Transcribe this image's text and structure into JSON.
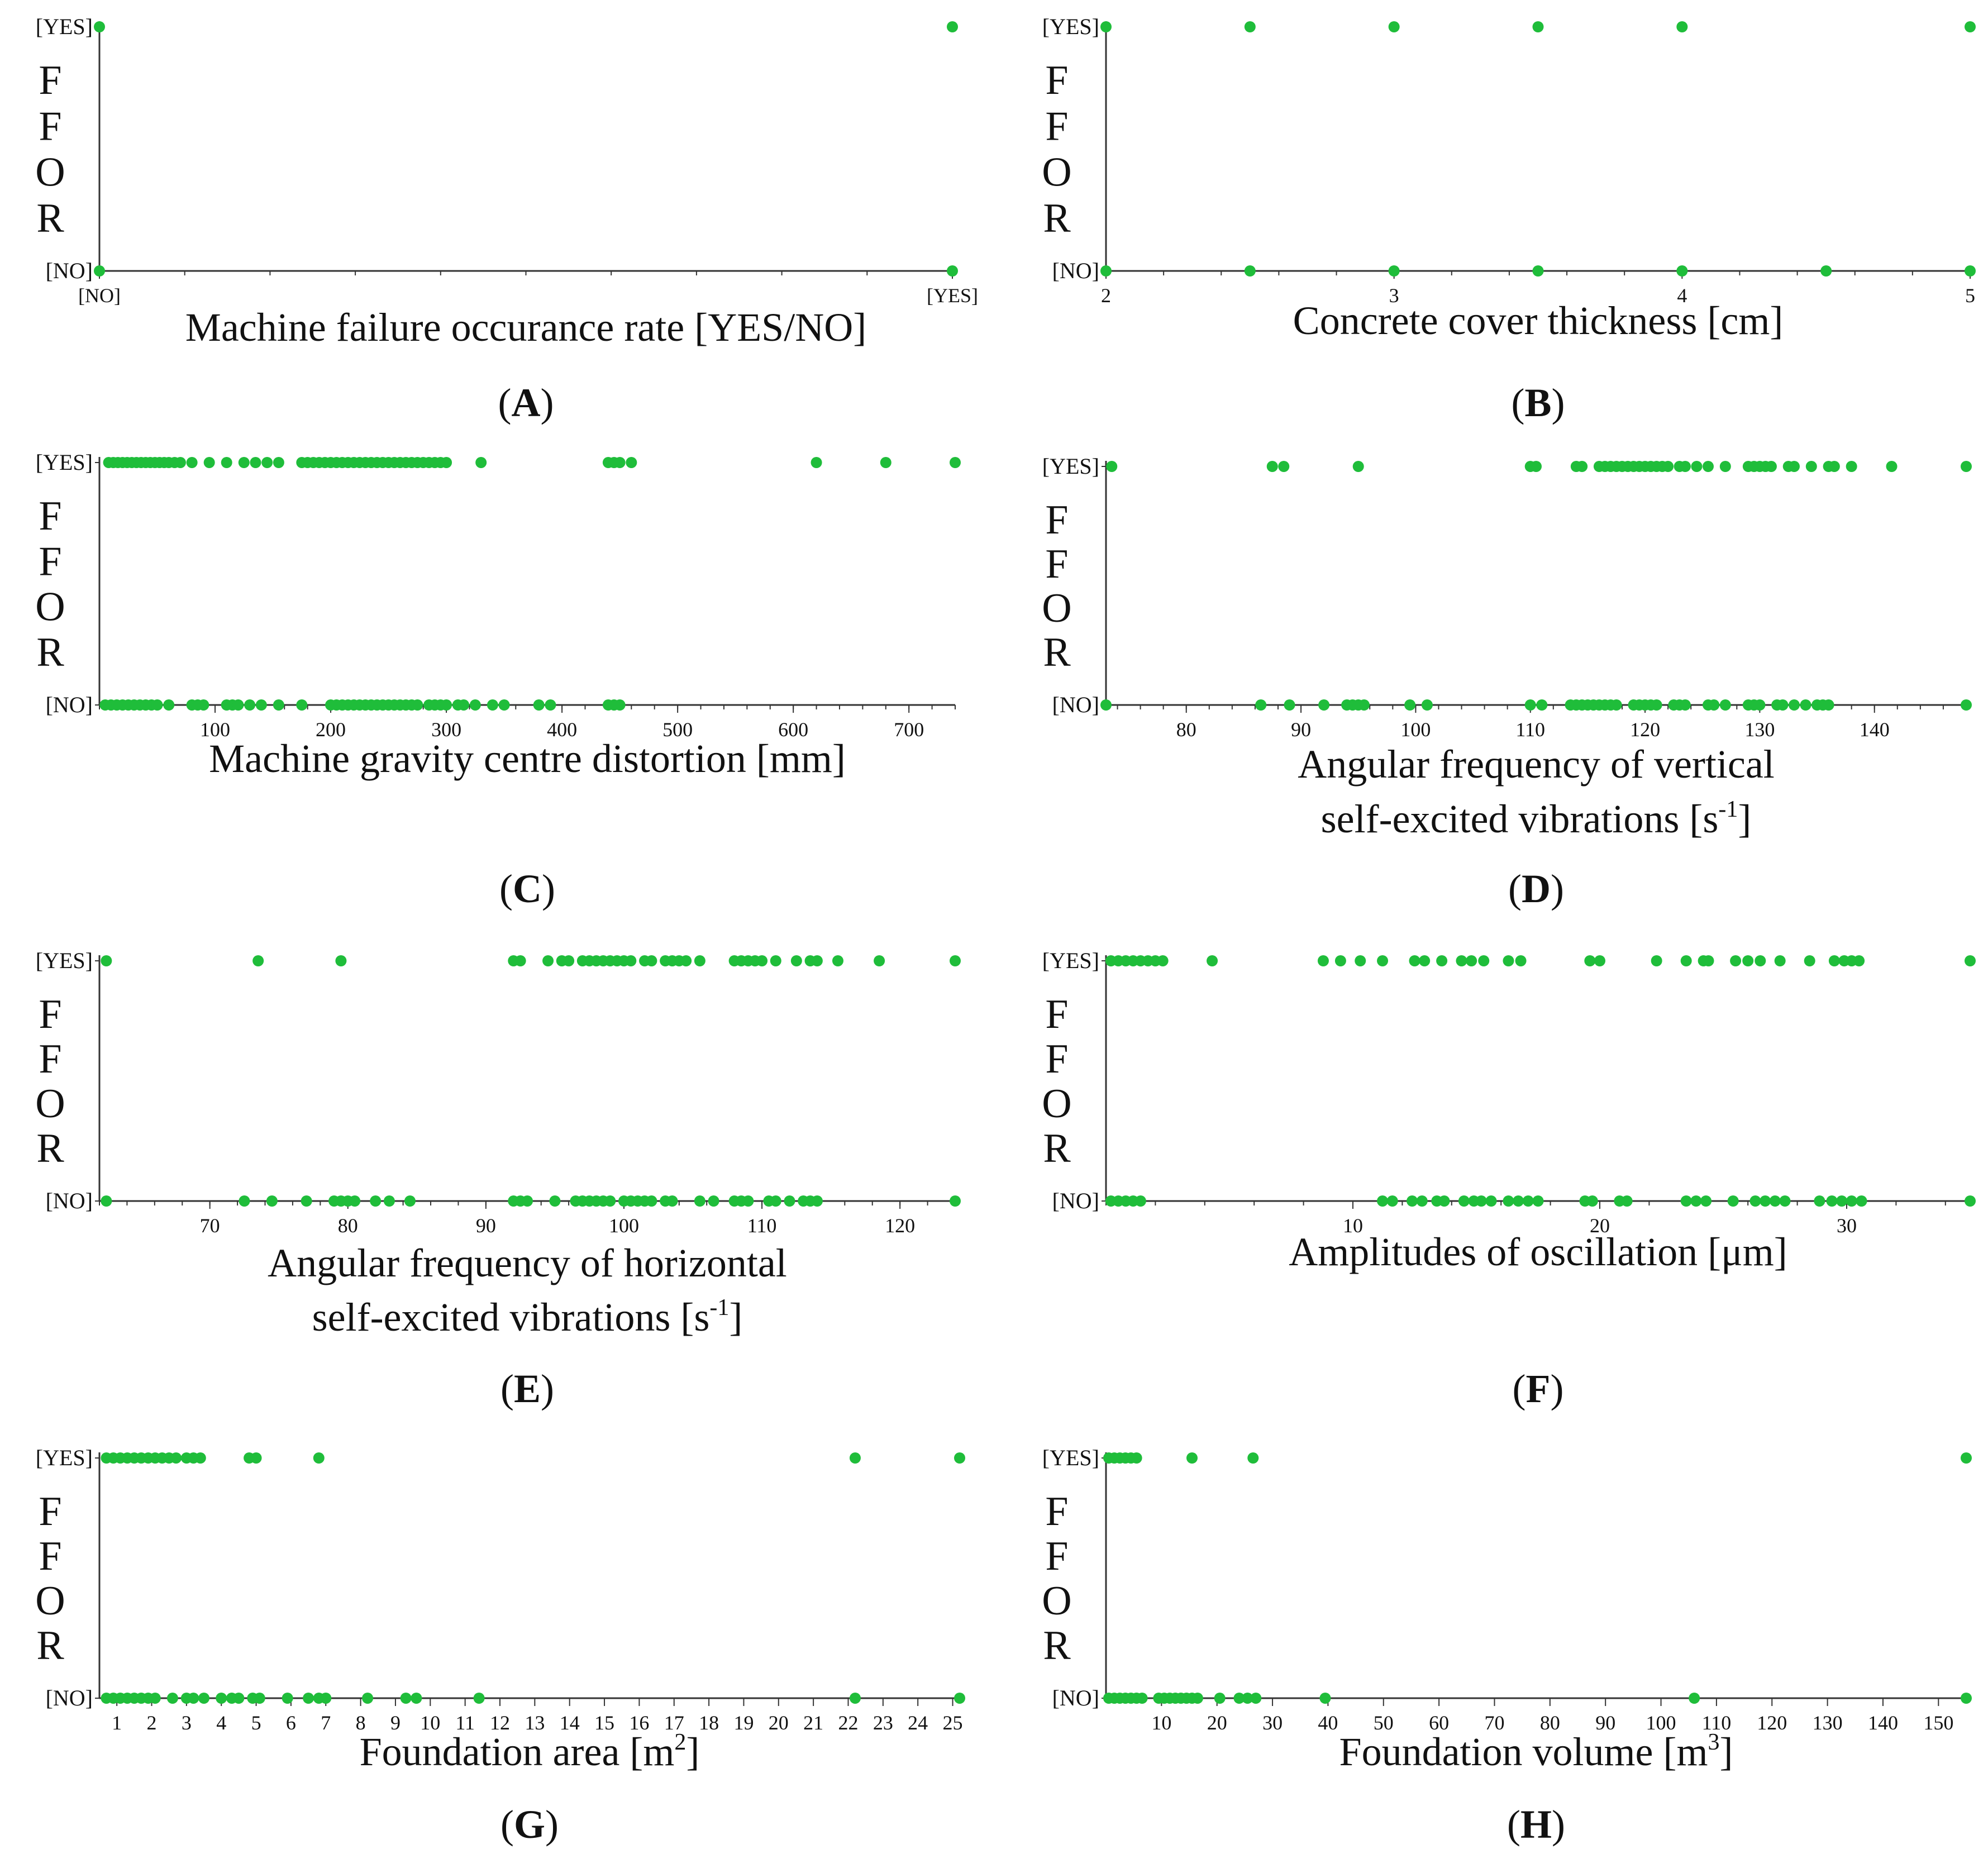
{
  "figure": {
    "y_axis_label_letters": [
      "F",
      "F",
      "O",
      "R"
    ],
    "y_categories": [
      "[NO]",
      "[YES]"
    ],
    "point_color": "#1fbd3a"
  },
  "chart_data": [
    {
      "type": "scatter",
      "caption": "A",
      "xlabel_lines": [
        "Machine failure occurance rate [YES/NO]"
      ],
      "ylabel": "FFOR",
      "x_categorical": true,
      "x_categories": [
        "[NO]",
        "[YES]"
      ],
      "xlim": [
        0,
        1
      ],
      "ylim": [
        "[NO]",
        "[YES]"
      ],
      "ticks": [
        0,
        1
      ],
      "yes_x": [
        0,
        1
      ],
      "no_x": [
        0,
        1
      ]
    },
    {
      "type": "scatter",
      "caption": "B",
      "xlabel_lines": [
        "Concrete cover thickness [cm]"
      ],
      "ylabel": "FFOR",
      "xlim": [
        2,
        5
      ],
      "ticks": [
        2,
        3,
        4,
        5
      ],
      "yes_x": [
        2,
        2.5,
        3,
        3.5,
        4,
        5
      ],
      "no_x": [
        2,
        2.5,
        3,
        3.5,
        4,
        4.5,
        5
      ]
    },
    {
      "type": "scatter",
      "caption": "C",
      "xlabel_lines": [
        "Machine gravity centre distortion [mm]"
      ],
      "ylabel": "FFOR",
      "xlim": [
        0,
        740
      ],
      "ticks": [
        100,
        200,
        300,
        400,
        500,
        600,
        700
      ],
      "yes_x": [
        8,
        12,
        16,
        20,
        24,
        28,
        32,
        36,
        40,
        44,
        48,
        52,
        56,
        60,
        65,
        70,
        80,
        95,
        110,
        125,
        135,
        145,
        155,
        175,
        180,
        185,
        190,
        195,
        200,
        205,
        210,
        215,
        220,
        225,
        230,
        235,
        240,
        245,
        250,
        255,
        260,
        265,
        270,
        275,
        280,
        285,
        290,
        295,
        300,
        330,
        440,
        445,
        450,
        460,
        620,
        680,
        740
      ],
      "no_x": [
        5,
        10,
        15,
        20,
        25,
        30,
        35,
        40,
        45,
        50,
        60,
        80,
        85,
        90,
        110,
        115,
        120,
        130,
        140,
        155,
        175,
        200,
        205,
        210,
        215,
        220,
        225,
        230,
        235,
        240,
        245,
        250,
        255,
        260,
        265,
        270,
        275,
        285,
        290,
        295,
        300,
        310,
        315,
        325,
        340,
        350,
        380,
        390,
        440,
        445,
        450
      ]
    },
    {
      "type": "scatter",
      "caption": "D",
      "xlabel_lines": [
        "Angular frequency of vertical",
        "self-excited vibrations [s-1]"
      ],
      "ylabel": "FFOR",
      "xlim": [
        73,
        148
      ],
      "ticks": [
        80,
        90,
        100,
        110,
        120,
        130,
        140
      ],
      "yes_x": [
        73.5,
        87.5,
        88.5,
        95,
        110,
        110.5,
        114,
        114.5,
        116,
        116.5,
        117,
        117.5,
        118,
        118.5,
        119,
        119.5,
        120,
        120.5,
        121,
        121.5,
        122,
        123,
        123.5,
        124.5,
        125.5,
        127,
        129,
        129.5,
        130,
        130.5,
        131,
        132.5,
        133,
        134.5,
        136,
        136.5,
        138,
        141.5,
        148
      ],
      "no_x": [
        73,
        86.5,
        89,
        92,
        94,
        94.5,
        95,
        95.5,
        99.5,
        101,
        110,
        111,
        113.5,
        114,
        114.5,
        115,
        115.5,
        116,
        116.5,
        117,
        117.5,
        119,
        119.5,
        120,
        120.5,
        121,
        122.5,
        123,
        123.5,
        125.5,
        126,
        127,
        129,
        129.5,
        130,
        131.5,
        132,
        133,
        134,
        135,
        135.5,
        136,
        148
      ]
    },
    {
      "type": "scatter",
      "caption": "E",
      "xlabel_lines": [
        "Angular frequency of horizontal",
        "self-excited vibrations [s-1]"
      ],
      "ylabel": "FFOR",
      "xlim": [
        62,
        124
      ],
      "ticks": [
        70,
        80,
        90,
        100,
        110,
        120
      ],
      "yes_x": [
        62.5,
        73.5,
        79.5,
        92,
        92.5,
        94.5,
        95.5,
        96,
        97,
        97.5,
        98,
        98.5,
        99,
        99.5,
        100,
        100.5,
        101.5,
        102,
        103,
        103.5,
        104,
        104.5,
        105.5,
        108,
        108.5,
        109,
        109.5,
        110,
        111,
        112.5,
        113.5,
        114,
        115.5,
        118.5,
        124
      ],
      "no_x": [
        62.5,
        72.5,
        74.5,
        77,
        79,
        79.5,
        80,
        80.5,
        82,
        83,
        84.5,
        92,
        92.5,
        93,
        95,
        96.5,
        97,
        97.5,
        98,
        98.5,
        99,
        100,
        100.5,
        101,
        101.5,
        102,
        103,
        103.5,
        105.5,
        106.5,
        108,
        108.5,
        109,
        110.5,
        111,
        112,
        113,
        113.5,
        114,
        124
      ]
    },
    {
      "type": "scatter",
      "caption": "F",
      "xlabel_lines": [
        "Amplitudes of oscillation [μm]"
      ],
      "ylabel": "FFOR",
      "xlim": [
        0,
        35
      ],
      "ticks": [
        10,
        20,
        30
      ],
      "yes_x": [
        0.2,
        0.5,
        0.8,
        1.1,
        1.4,
        1.7,
        2.0,
        2.3,
        4.3,
        8.8,
        9.5,
        10.3,
        11.2,
        12.5,
        12.9,
        13.6,
        14.4,
        14.8,
        15.3,
        16.3,
        16.8,
        19.6,
        20,
        22.3,
        23.5,
        24.2,
        24.4,
        25.5,
        26.0,
        26.5,
        27.3,
        28.5,
        29.5,
        29.9,
        30.2,
        30.5,
        35
      ],
      "no_x": [
        0.2,
        0.5,
        0.8,
        1.1,
        1.4,
        11.2,
        11.6,
        12.4,
        12.8,
        13.4,
        13.7,
        14.5,
        14.9,
        15.2,
        15.6,
        16.3,
        16.7,
        17.1,
        17.5,
        19.4,
        19.7,
        20.8,
        21.1,
        23.5,
        23.9,
        24.3,
        25.4,
        26.3,
        26.7,
        27.1,
        27.5,
        28.9,
        29.4,
        29.8,
        30.2,
        30.6,
        35
      ]
    },
    {
      "type": "scatter",
      "caption": "G",
      "xlabel_lines": [
        "Foundation area [m2]"
      ],
      "ylabel": "FFOR",
      "xlim": [
        0.5,
        25.2
      ],
      "ticks": [
        1,
        2,
        3,
        4,
        5,
        6,
        7,
        8,
        9,
        10,
        11,
        12,
        13,
        14,
        15,
        16,
        17,
        18,
        19,
        20,
        21,
        22,
        23,
        24,
        25
      ],
      "yes_x": [
        0.7,
        0.9,
        1.1,
        1.3,
        1.5,
        1.7,
        1.9,
        2.1,
        2.3,
        2.5,
        2.7,
        3.0,
        3.2,
        3.4,
        4.8,
        5.0,
        6.8,
        22.2,
        25.2
      ],
      "no_x": [
        0.7,
        0.9,
        1.1,
        1.3,
        1.5,
        1.7,
        1.9,
        2.1,
        2.6,
        3.0,
        3.2,
        3.5,
        4.0,
        4.3,
        4.5,
        4.9,
        5.1,
        5.9,
        6.5,
        6.8,
        7.0,
        8.2,
        9.3,
        9.6,
        11.4,
        22.2,
        25.2
      ]
    },
    {
      "type": "scatter",
      "caption": "H",
      "xlabel_lines": [
        "Foundation volume [m3]"
      ],
      "ylabel": "FFOR",
      "xlim": [
        0,
        155
      ],
      "ticks": [
        10,
        20,
        30,
        40,
        50,
        60,
        70,
        80,
        90,
        100,
        110,
        120,
        130,
        140,
        150
      ],
      "yes_x": [
        0.5,
        1.5,
        2.5,
        3.5,
        4.5,
        5.5,
        15.5,
        26.5,
        155
      ],
      "no_x": [
        0.5,
        1.5,
        2.5,
        3.5,
        4.5,
        5.5,
        6.5,
        9.5,
        10.5,
        11.5,
        12.5,
        13.5,
        14.5,
        15.5,
        16.5,
        20.5,
        24,
        25.5,
        27,
        39.5,
        106,
        155
      ]
    }
  ]
}
